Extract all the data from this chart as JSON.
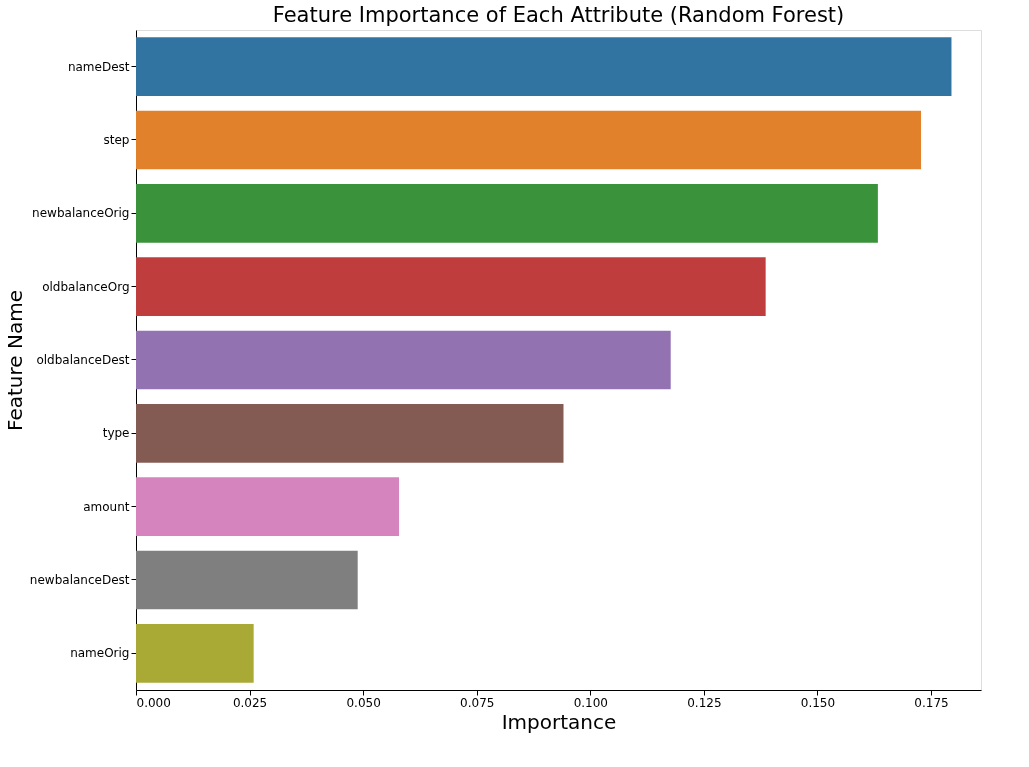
{
  "chart_data": {
    "type": "bar",
    "orientation": "horizontal",
    "title": "Feature Importance of Each Attribute (Random Forest)",
    "xlabel": "Importance",
    "ylabel": "Feature Name",
    "categories": [
      "nameDest",
      "step",
      "newbalanceOrig",
      "oldbalanceOrg",
      "oldbalanceDest",
      "type",
      "amount",
      "newbalanceDest",
      "nameOrig"
    ],
    "values": [
      0.1795,
      0.1728,
      0.1633,
      0.1386,
      0.1177,
      0.0941,
      0.0579,
      0.0488,
      0.0259
    ],
    "colors": [
      "#3274a1",
      "#e1812c",
      "#3a923a",
      "#c03d3e",
      "#9372b2",
      "#845b53",
      "#d684bd",
      "#7f7f7f",
      "#a9aa35"
    ],
    "xlim": [
      0,
      0.186
    ],
    "xticks": [
      {
        "value": 0,
        "label": "0.000"
      },
      {
        "value": 0.025,
        "label": "0.025"
      },
      {
        "value": 0.05,
        "label": "0.050"
      },
      {
        "value": 0.075,
        "label": "0.075"
      },
      {
        "value": 0.1,
        "label": "0.100"
      },
      {
        "value": 0.125,
        "label": "0.125"
      },
      {
        "value": 0.15,
        "label": "0.150"
      },
      {
        "value": 0.175,
        "label": "0.175"
      }
    ],
    "grid": false,
    "legend": false
  }
}
